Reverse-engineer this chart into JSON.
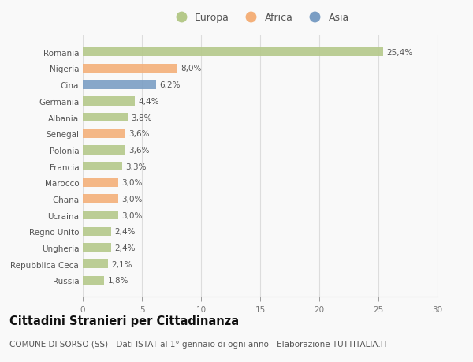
{
  "categories": [
    "Romania",
    "Nigeria",
    "Cina",
    "Germania",
    "Albania",
    "Senegal",
    "Polonia",
    "Francia",
    "Marocco",
    "Ghana",
    "Ucraina",
    "Regno Unito",
    "Ungheria",
    "Repubblica Ceca",
    "Russia"
  ],
  "values": [
    25.4,
    8.0,
    6.2,
    4.4,
    3.8,
    3.6,
    3.6,
    3.3,
    3.0,
    3.0,
    3.0,
    2.4,
    2.4,
    2.1,
    1.8
  ],
  "labels": [
    "25,4%",
    "8,0%",
    "6,2%",
    "4,4%",
    "3,8%",
    "3,6%",
    "3,6%",
    "3,3%",
    "3,0%",
    "3,0%",
    "3,0%",
    "2,4%",
    "2,4%",
    "2,1%",
    "1,8%"
  ],
  "continent": [
    "Europa",
    "Africa",
    "Asia",
    "Europa",
    "Europa",
    "Africa",
    "Europa",
    "Europa",
    "Africa",
    "Africa",
    "Europa",
    "Europa",
    "Europa",
    "Europa",
    "Europa"
  ],
  "colors": {
    "Europa": "#b5c98a",
    "Africa": "#f4b07a",
    "Asia": "#7b9ec4"
  },
  "xlim": [
    0,
    30
  ],
  "xticks": [
    0,
    5,
    10,
    15,
    20,
    25,
    30
  ],
  "title": "Cittadini Stranieri per Cittadinanza",
  "subtitle": "COMUNE DI SORSO (SS) - Dati ISTAT al 1° gennaio di ogni anno - Elaborazione TUTTITALIA.IT",
  "bg_color": "#f9f9f9",
  "bar_height": 0.55,
  "label_fontsize": 7.5,
  "tick_fontsize": 7.5,
  "title_fontsize": 10.5,
  "subtitle_fontsize": 7.5
}
